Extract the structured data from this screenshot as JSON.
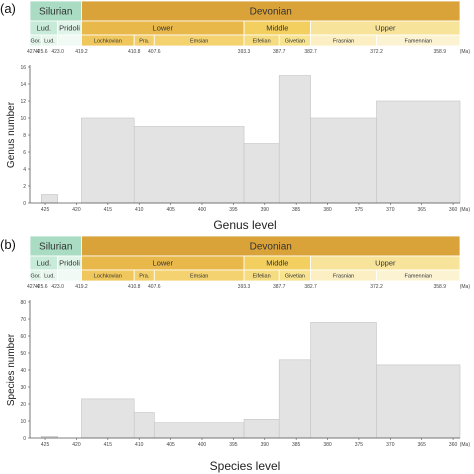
{
  "panel_labels": [
    "(a)",
    "(b)"
  ],
  "stratigraphy": {
    "periods": [
      {
        "name": "Silurian",
        "start": 427.4,
        "end": 419.2,
        "color": "#a9dcc3"
      },
      {
        "name": "Devonian",
        "start": 419.2,
        "end": 358.9,
        "color": "#d9a33a"
      }
    ],
    "epochs": [
      {
        "name": "Lud.",
        "start": 427.4,
        "end": 423.0,
        "color": "#c8ebd9"
      },
      {
        "name": "Pridoli",
        "start": 423.0,
        "end": 419.2,
        "color": "#e1f4ea"
      },
      {
        "name": "Lower",
        "start": 419.2,
        "end": 393.3,
        "color": "#e9b84a"
      },
      {
        "name": "Middle",
        "start": 393.3,
        "end": 382.7,
        "color": "#f2cf5f"
      },
      {
        "name": "Upper",
        "start": 382.7,
        "end": 358.9,
        "color": "#f7e49a"
      }
    ],
    "stages": [
      {
        "name": "Gor.",
        "start": 427.4,
        "end": 425.6,
        "color": "#dff3e8"
      },
      {
        "name": "Lud.",
        "start": 425.6,
        "end": 423.0,
        "color": "#e8f6ee"
      },
      {
        "name": "",
        "start": 423.0,
        "end": 419.2,
        "color": "#f1faf5"
      },
      {
        "name": "Lochkovian",
        "start": 419.2,
        "end": 410.8,
        "color": "#f0c75d"
      },
      {
        "name": "Pra.",
        "start": 410.8,
        "end": 407.6,
        "color": "#f3cf6b"
      },
      {
        "name": "Emsian",
        "start": 407.6,
        "end": 393.3,
        "color": "#f3d26f"
      },
      {
        "name": "Eifelian",
        "start": 393.3,
        "end": 387.7,
        "color": "#f6dc80"
      },
      {
        "name": "Givetian",
        "start": 387.7,
        "end": 382.7,
        "color": "#f8e38f"
      },
      {
        "name": "Frasnian",
        "start": 382.7,
        "end": 372.2,
        "color": "#fbefc3"
      },
      {
        "name": "Famennian",
        "start": 372.2,
        "end": 358.9,
        "color": "#fcf3d3"
      }
    ],
    "boundaries": [
      "427.4",
      "425.6",
      "423.0",
      "419.2",
      "410.8",
      "407.6",
      "393.3",
      "387.7",
      "382.7",
      "372.2",
      "358.9"
    ],
    "unit_label": "(Ma)"
  },
  "chart_data": [
    {
      "type": "bar",
      "title": "",
      "xlabel": "Genus level",
      "ylabel": "Genus number",
      "xlim": [
        427.4,
        358.9
      ],
      "ylim": [
        0,
        16
      ],
      "yticks": [
        0,
        2,
        4,
        6,
        8,
        10,
        12,
        14,
        16
      ],
      "xticks": [
        425,
        420,
        415,
        410,
        405,
        400,
        395,
        390,
        385,
        380,
        375,
        370,
        365,
        360
      ],
      "grid": false,
      "bars": [
        {
          "start": 427.4,
          "end": 425.6,
          "value": 0
        },
        {
          "start": 425.6,
          "end": 423.0,
          "value": 1
        },
        {
          "start": 423.0,
          "end": 419.2,
          "value": 0
        },
        {
          "start": 419.2,
          "end": 410.8,
          "value": 10
        },
        {
          "start": 410.8,
          "end": 393.3,
          "value": 9
        },
        {
          "start": 393.3,
          "end": 387.7,
          "value": 7
        },
        {
          "start": 387.7,
          "end": 382.7,
          "value": 15
        },
        {
          "start": 382.7,
          "end": 372.2,
          "value": 10
        },
        {
          "start": 372.2,
          "end": 358.9,
          "value": 12
        }
      ]
    },
    {
      "type": "bar",
      "title": "",
      "xlabel": "Species level",
      "ylabel": "Species number",
      "xlim": [
        427.4,
        358.9
      ],
      "ylim": [
        0,
        80
      ],
      "yticks": [
        0,
        10,
        20,
        30,
        40,
        50,
        60,
        70,
        80
      ],
      "xticks": [
        425,
        420,
        415,
        410,
        405,
        400,
        395,
        390,
        385,
        380,
        375,
        370,
        365,
        360
      ],
      "grid": false,
      "bars": [
        {
          "start": 427.4,
          "end": 425.6,
          "value": 0
        },
        {
          "start": 425.6,
          "end": 423.0,
          "value": 1
        },
        {
          "start": 423.0,
          "end": 419.2,
          "value": 0
        },
        {
          "start": 419.2,
          "end": 410.8,
          "value": 23
        },
        {
          "start": 410.8,
          "end": 407.6,
          "value": 15
        },
        {
          "start": 407.6,
          "end": 393.3,
          "value": 9
        },
        {
          "start": 393.3,
          "end": 387.7,
          "value": 11
        },
        {
          "start": 387.7,
          "end": 382.7,
          "value": 46
        },
        {
          "start": 382.7,
          "end": 372.2,
          "value": 68
        },
        {
          "start": 372.2,
          "end": 358.9,
          "value": 43
        }
      ]
    }
  ],
  "colors": {
    "bar_fill": "#e3e3e3",
    "bar_stroke": "#c4c4c4",
    "axis": "#555555"
  }
}
